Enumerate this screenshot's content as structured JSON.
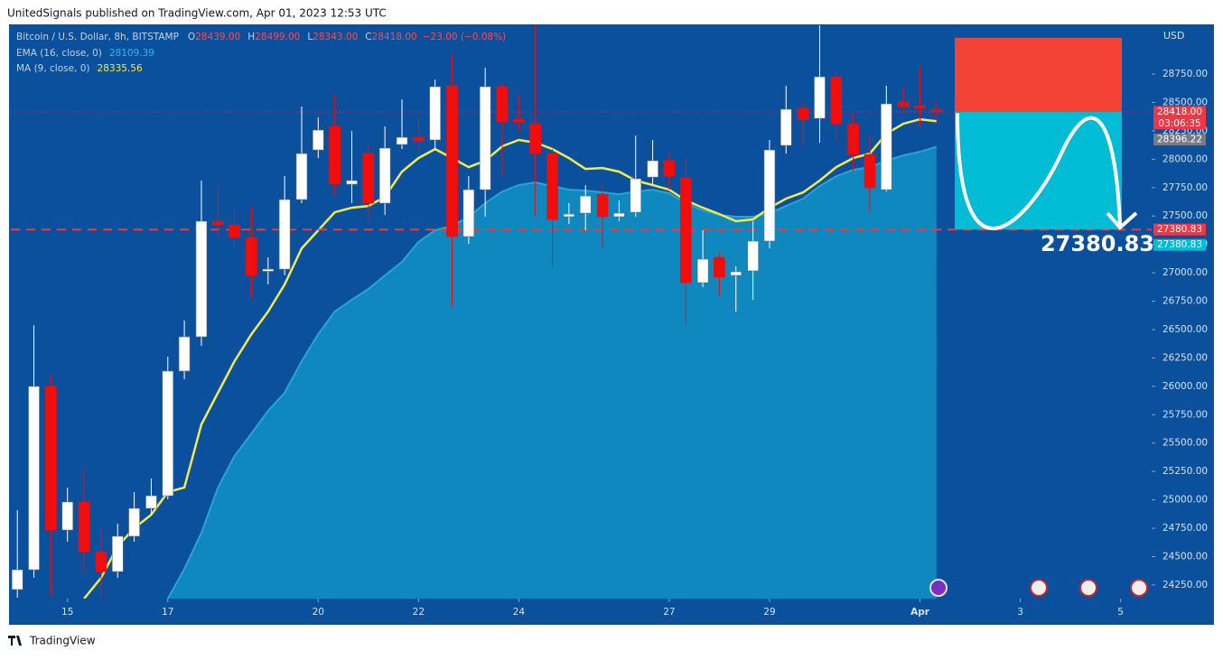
{
  "header": "UnitedSignals published on TradingView.com, Apr 01, 2023 12:53 UTC",
  "footer": "TradingView",
  "chart_data": {
    "type": "candlestick",
    "symbol": "Bitcoin / U.S. Dollar, 8h, BITSTAMP",
    "ohlc_legend": [
      {
        "key": "O",
        "text": "28439.00"
      },
      {
        "key": "H",
        "text": "28499.00"
      },
      {
        "key": "L",
        "text": "28343.00"
      },
      {
        "key": "C",
        "text": "28418.00"
      }
    ],
    "change": "−23.00 (−0.08%)",
    "currency": "USD",
    "up_color": "#ffffff",
    "down_color": "#f20d0d",
    "x": [
      14,
      14.33,
      14.67,
      15,
      15.33,
      15.67,
      16,
      16.33,
      16.67,
      17,
      17.33,
      17.67,
      18,
      18.33,
      18.67,
      19,
      19.33,
      19.67,
      20,
      20.33,
      20.67,
      21,
      21.33,
      21.67,
      22,
      22.33,
      22.67,
      23,
      23.33,
      23.67,
      24,
      24.33,
      24.67,
      25,
      25.33,
      25.67,
      26,
      26.33,
      26.67,
      27,
      27.33,
      27.67,
      28,
      28.33,
      28.67,
      29,
      29.33,
      29.67,
      30,
      30.33,
      30.67,
      31,
      31.33,
      31.67,
      32,
      32.33
    ],
    "open": [
      24210,
      24384,
      25999,
      24734,
      24981,
      24543,
      24368,
      24679,
      24925,
      25036,
      26134,
      26436,
      27454,
      27422,
      27311,
      27013,
      27032,
      27645,
      28082,
      28289,
      27780,
      28050,
      27613,
      28130,
      28193,
      28170,
      28647,
      27319,
      27732,
      28639,
      28352,
      28313,
      28050,
      27494,
      27525,
      27692,
      27494,
      27533,
      27843,
      27987,
      27836,
      26913,
      27136,
      26977,
      27017,
      27279,
      28122,
      28448,
      28360,
      28726,
      28313,
      28042,
      27732,
      28504,
      28472,
      28439
    ],
    "high": [
      24909,
      26539,
      26102,
      25108,
      25267,
      24750,
      24790,
      25068,
      25188,
      26261,
      26579,
      27812,
      27772,
      27573,
      27573,
      27136,
      27851,
      28464,
      28368,
      28567,
      28249,
      28130,
      28289,
      28527,
      28368,
      28702,
      28925,
      27851,
      28806,
      28670,
      28567,
      29250,
      28090,
      27613,
      27772,
      27772,
      27637,
      28209,
      28170,
      28050,
      28010,
      27374,
      27176,
      27056,
      27454,
      28170,
      28647,
      28511,
      29180,
      28766,
      28408,
      28209,
      28647,
      28647,
      28822,
      28499
    ],
    "low": [
      24138,
      24313,
      24154,
      24631,
      24368,
      24154,
      24313,
      24631,
      24869,
      25005,
      26062,
      26356,
      27311,
      27207,
      26778,
      26897,
      26977,
      27613,
      28010,
      27692,
      27613,
      27454,
      27509,
      28090,
      28050,
      28090,
      26698,
      27255,
      27494,
      27851,
      28249,
      27494,
      27056,
      27430,
      27374,
      27215,
      27454,
      27494,
      27772,
      27732,
      26539,
      26873,
      26794,
      26659,
      26762,
      27215,
      28050,
      28130,
      28146,
      28170,
      27891,
      27533,
      27716,
      28408,
      28289,
      28343
    ],
    "close": [
      24384,
      25999,
      24734,
      24981,
      24543,
      24368,
      24679,
      24925,
      25036,
      26134,
      26436,
      27454,
      27422,
      27311,
      26977,
      27032,
      27645,
      28050,
      28257,
      27780,
      27812,
      27613,
      28098,
      28193,
      28162,
      28639,
      27319,
      27732,
      28639,
      28329,
      28329,
      28050,
      27470,
      27517,
      27676,
      27494,
      27525,
      27828,
      27987,
      27851,
      26913,
      27120,
      26961,
      27009,
      27279,
      28082,
      28440,
      28352,
      28726,
      28313,
      28042,
      27748,
      28488,
      28464,
      28448,
      28418
    ],
    "series": [
      {
        "name": "EMA (16, close, 0)",
        "kind": "area",
        "color": "#0f88c0",
        "line_color": "#2aa4d0",
        "label_color": "#2cb8e8",
        "values": [
          null,
          null,
          null,
          null,
          null,
          null,
          null,
          null,
          null,
          24130,
          24392,
          24710,
          25108,
          25386,
          25585,
          25784,
          25943,
          26221,
          26460,
          26658,
          26762,
          26857,
          26977,
          27096,
          27271,
          27374,
          27414,
          27494,
          27613,
          27716,
          27772,
          27796,
          27764,
          27732,
          27724,
          27708,
          27692,
          27716,
          27732,
          27700,
          27613,
          27549,
          27509,
          27494,
          27494,
          27525,
          27589,
          27653,
          27764,
          27851,
          27907,
          27931,
          27987,
          28034,
          28066,
          28109.39
        ]
      },
      {
        "name": "MA (9, close, 0)",
        "kind": "line",
        "color": "#f5e94a",
        "label_color": "#f5e94a",
        "values": [
          null,
          null,
          null,
          null,
          24130,
          24313,
          24591,
          24750,
          24869,
          25068,
          25108,
          25665,
          25943,
          26221,
          26460,
          26658,
          26897,
          27215,
          27374,
          27533,
          27573,
          27589,
          27668,
          27891,
          28010,
          28090,
          28010,
          27931,
          27987,
          28114,
          28170,
          28146,
          28090,
          28010,
          27915,
          27923,
          27891,
          27812,
          27772,
          27732,
          27637,
          27573,
          27517,
          27454,
          27470,
          27573,
          27653,
          27708,
          27812,
          27931,
          28010,
          28050,
          28225,
          28313,
          28352,
          28335.56
        ]
      }
    ],
    "xlim": [
      13.87,
      36.62
    ],
    "ylim": [
      24130,
      29180
    ],
    "xticks": [
      15,
      17,
      20,
      22,
      24,
      27,
      29,
      {
        "value": 32,
        "label": "Apr"
      },
      {
        "value": 34,
        "label": "3"
      },
      {
        "value": 36,
        "label": "5"
      }
    ],
    "yticks": [
      {
        "value": 24250,
        "label": "24250.00"
      },
      {
        "value": 24500,
        "label": "24500.00"
      },
      {
        "value": 24750,
        "label": "24750.00"
      },
      {
        "value": 25000,
        "label": "25000.00"
      },
      {
        "value": 25250,
        "label": "25250.00"
      },
      {
        "value": 25500,
        "label": "25500.00"
      },
      {
        "value": 25750,
        "label": "25750.00"
      },
      {
        "value": 26000,
        "label": "26000.00"
      },
      {
        "value": 26250,
        "label": "26250.00"
      },
      {
        "value": 26500,
        "label": "26500.00"
      },
      {
        "value": 26750,
        "label": "26750.00"
      },
      {
        "value": 27000,
        "label": "27000.00"
      },
      {
        "value": 27250,
        "label": "27250.00"
      },
      {
        "value": 27500,
        "label": "27500.00"
      },
      {
        "value": 27750,
        "label": "27750.00"
      },
      {
        "value": 28000,
        "label": "28000.00"
      },
      {
        "value": 28250,
        "label": "28250.00"
      },
      {
        "value": 28500,
        "label": "28500.00"
      },
      {
        "value": 28750,
        "label": "28750.00"
      }
    ],
    "levels": [
      {
        "value": 27380.83,
        "style": "dashed",
        "color": "#f23645"
      },
      {
        "value": 28418,
        "style": "dotted",
        "color": "#f23645"
      }
    ],
    "position_boxes": [
      {
        "top": 29070,
        "bottom": 28418,
        "color": "#f44336"
      },
      {
        "top": 28418,
        "bottom": 27380.83,
        "color": "#00bcd4"
      }
    ],
    "price_tags": [
      {
        "value": 28418,
        "label": "28418.00",
        "color": "#f23645"
      },
      {
        "value": 28396.22,
        "label": "28396.22",
        "color": "#787b86"
      },
      {
        "value": 27380.83,
        "label": "27380.83",
        "color": "#f23645"
      },
      {
        "value": 27380.83,
        "label": "27380.83",
        "color": "#00bcd4"
      }
    ],
    "countdown": "03:06:35",
    "annotation": {
      "value": 27380.83,
      "label": "27380.83"
    }
  }
}
